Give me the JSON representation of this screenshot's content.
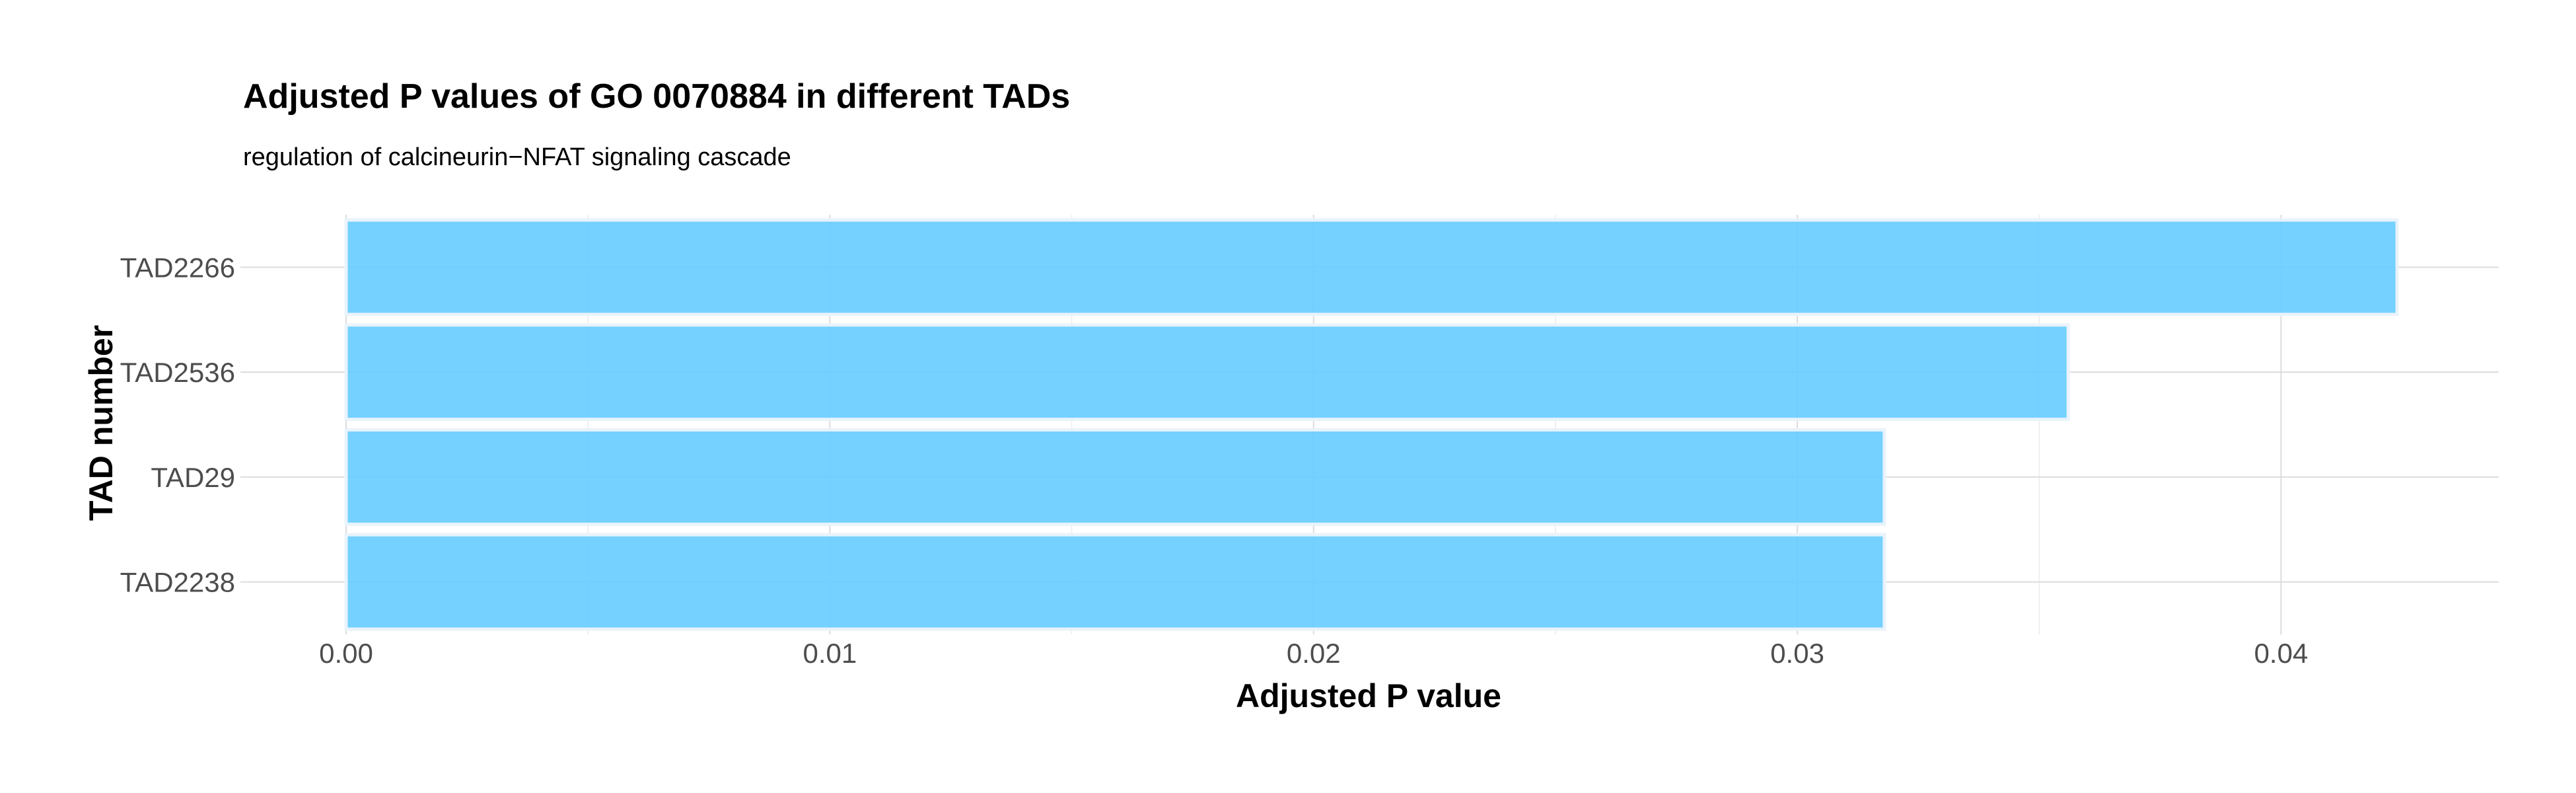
{
  "chart_data": {
    "type": "bar",
    "orientation": "horizontal",
    "title": "Adjusted P values of GO 0070884 in different TADs",
    "subtitle": "regulation of calcineurin−NFAT signaling cascade",
    "xlabel": "Adjusted P value",
    "ylabel": "TAD number",
    "categories": [
      "TAD2266",
      "TAD2536",
      "TAD29",
      "TAD2238"
    ],
    "values": [
      0.0424,
      0.0356,
      0.0318,
      0.0318
    ],
    "xlim": [
      0,
      0.0445
    ],
    "xticks": [
      0.0,
      0.01,
      0.02,
      0.03,
      0.04
    ],
    "xtick_labels": [
      "0.00",
      "0.01",
      "0.02",
      "0.03",
      "0.04"
    ],
    "grid": true,
    "bar_color": "#66ccff"
  }
}
